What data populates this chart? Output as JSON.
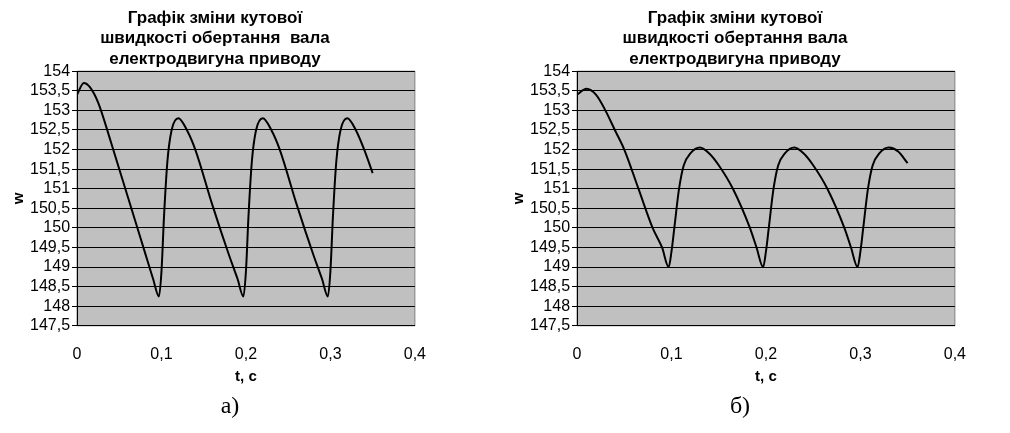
{
  "chart_data": [
    {
      "type": "line",
      "title": [
        "Графік зміни кутової",
        "швидкості обертання  вала",
        "електродвигуна приводу"
      ],
      "xlabel": "t, c",
      "ylabel": "w",
      "annotations": [
        "а)"
      ],
      "x": [
        0,
        0.008,
        0.015,
        0.025,
        0.04,
        0.06,
        0.08,
        0.09,
        0.097,
        0.1,
        0.103,
        0.107,
        0.112,
        0.12,
        0.13,
        0.14,
        0.16,
        0.18,
        0.19,
        0.197,
        0.2,
        0.203,
        0.207,
        0.212,
        0.22,
        0.23,
        0.24,
        0.26,
        0.28,
        0.29,
        0.297,
        0.3,
        0.303,
        0.307,
        0.312,
        0.32,
        0.33,
        0.34,
        0.35
      ],
      "series": [
        {
          "color": "#000000",
          "values": [
            153.4,
            153.7,
            153.6,
            153.2,
            152.2,
            150.8,
            149.4,
            148.7,
            148.25,
            148.9,
            150.3,
            151.7,
            152.5,
            152.8,
            152.5,
            152,
            150.6,
            149.3,
            148.7,
            148.25,
            148.9,
            150.3,
            151.7,
            152.5,
            152.8,
            152.5,
            152,
            150.6,
            149.3,
            148.7,
            148.25,
            148.9,
            150.3,
            151.7,
            152.5,
            152.8,
            152.5,
            152,
            151.4
          ]
        }
      ],
      "xlim": [
        0,
        0.4
      ],
      "ylim": [
        147.5,
        154
      ],
      "xticks": [
        0,
        {
          "value": 0.1,
          "label": "0,1"
        },
        {
          "value": 0.2,
          "label": "0,2"
        },
        {
          "value": 0.3,
          "label": "0,3"
        },
        {
          "value": 0.4,
          "label": "0,4"
        }
      ],
      "yticks": [
        {
          "value": 147.5,
          "label": "147,5"
        },
        148,
        {
          "value": 148.5,
          "label": "148,5"
        },
        149,
        {
          "value": 149.5,
          "label": "149,5"
        },
        150,
        {
          "value": 150.5,
          "label": "150,5"
        },
        151,
        {
          "value": 151.5,
          "label": "151,5"
        },
        152,
        {
          "value": 152.5,
          "label": "152,5"
        },
        153,
        {
          "value": 153.5,
          "label": "153,5"
        },
        154
      ],
      "grid": "y",
      "legend": false,
      "marker": "none",
      "line_style": "solid"
    },
    {
      "type": "line",
      "title": [
        "Графік зміни кутової",
        "швидкості обертання вала",
        "електродвигуна приводу"
      ],
      "xlabel": "t, c",
      "ylabel": "w",
      "annotations": [
        "б)"
      ],
      "x": [
        0,
        0.01,
        0.02,
        0.03,
        0.04,
        0.05,
        0.065,
        0.08,
        0.09,
        0.097,
        0.1,
        0.103,
        0.108,
        0.113,
        0.12,
        0.13,
        0.14,
        0.15,
        0.165,
        0.183,
        0.19,
        0.197,
        0.2,
        0.203,
        0.208,
        0.213,
        0.22,
        0.23,
        0.24,
        0.25,
        0.265,
        0.283,
        0.29,
        0.297,
        0.3,
        0.303,
        0.308,
        0.313,
        0.32,
        0.33,
        0.34,
        0.35
      ],
      "series": [
        {
          "color": "#000000",
          "values": [
            153.4,
            153.55,
            153.4,
            153,
            152.5,
            152,
            151,
            150,
            149.5,
            149,
            149.4,
            150,
            151,
            151.6,
            151.9,
            152.05,
            151.9,
            151.6,
            151,
            150,
            149.5,
            149,
            149.4,
            150,
            151,
            151.6,
            151.9,
            152.05,
            151.9,
            151.6,
            151,
            150,
            149.5,
            149,
            149.4,
            150,
            151,
            151.6,
            151.9,
            152.05,
            151.95,
            151.65
          ]
        }
      ],
      "xlim": [
        0,
        0.4
      ],
      "ylim": [
        147.5,
        154
      ],
      "xticks": [
        0,
        {
          "value": 0.1,
          "label": "0,1"
        },
        {
          "value": 0.2,
          "label": "0,2"
        },
        {
          "value": 0.3,
          "label": "0,3"
        },
        {
          "value": 0.4,
          "label": "0,4"
        }
      ],
      "yticks": [
        {
          "value": 147.5,
          "label": "147,5"
        },
        148,
        {
          "value": 148.5,
          "label": "148,5"
        },
        149,
        {
          "value": 149.5,
          "label": "149,5"
        },
        150,
        {
          "value": 150.5,
          "label": "150,5"
        },
        151,
        {
          "value": 151.5,
          "label": "151,5"
        },
        152,
        {
          "value": 152.5,
          "label": "152,5"
        },
        153,
        {
          "value": 153.5,
          "label": "153,5"
        },
        154
      ],
      "grid": "y",
      "legend": false,
      "marker": "none",
      "line_style": "solid"
    }
  ]
}
